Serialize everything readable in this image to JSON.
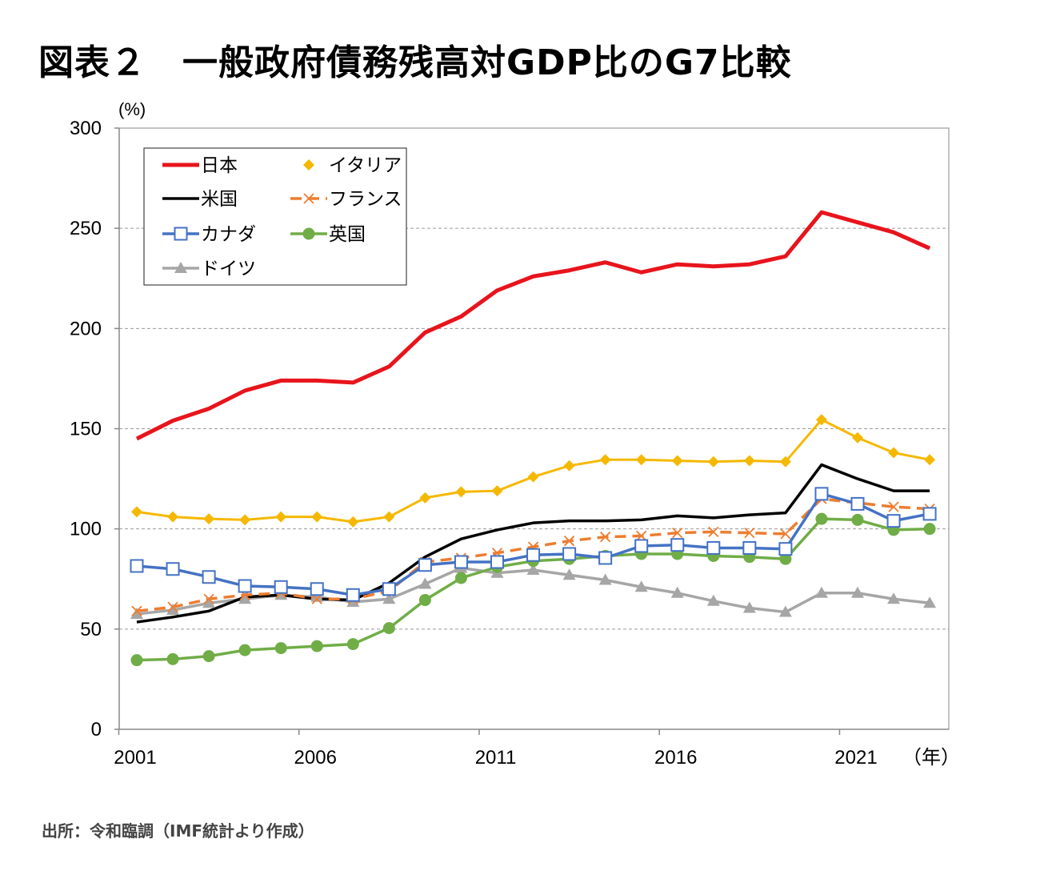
{
  "title": "図表２　一般政府債務残高対GDP比のG7比較",
  "source": "出所：令和臨調（IMF統計より作成）",
  "chart_data": {
    "type": "line",
    "ylabel": "(%)",
    "xlabel": "（年）",
    "ylim": [
      0,
      300
    ],
    "yticks": [
      0,
      50,
      100,
      150,
      200,
      250,
      300
    ],
    "xlim": [
      2001,
      2023
    ],
    "xticks": [
      2001,
      2006,
      2011,
      2016,
      2021
    ],
    "grid": true,
    "legend_position": "top-left",
    "x": [
      2001,
      2002,
      2003,
      2004,
      2005,
      2006,
      2007,
      2008,
      2009,
      2010,
      2011,
      2012,
      2013,
      2014,
      2015,
      2016,
      2017,
      2018,
      2019,
      2020,
      2021,
      2022,
      2023
    ],
    "series": [
      {
        "name": "日本",
        "color": "#e8141c",
        "marker": "none",
        "dash": "",
        "values": [
          145,
          154,
          160,
          169,
          174,
          174,
          173,
          181,
          198,
          206,
          219,
          226,
          229,
          233,
          228,
          232,
          231,
          232,
          236,
          258,
          253,
          248,
          240
        ]
      },
      {
        "name": "イタリア",
        "color": "#f5b800",
        "marker": "diamond",
        "dash": "",
        "values": [
          108.5,
          106,
          105,
          104.5,
          106,
          106,
          103.5,
          106,
          115.5,
          118.5,
          119,
          126,
          131.5,
          134.5,
          134.5,
          134,
          133.5,
          134,
          133.5,
          154.5,
          145.5,
          138,
          134.5
        ]
      },
      {
        "name": "米国",
        "color": "#000000",
        "marker": "none",
        "dash": "",
        "values": [
          53.5,
          56,
          59,
          66,
          67,
          65,
          64.5,
          73,
          86,
          95,
          99.5,
          103,
          104,
          104,
          104.5,
          106.5,
          105.5,
          107,
          108,
          132,
          125,
          119,
          119
        ]
      },
      {
        "name": "フランス",
        "color": "#ed7d31",
        "marker": "x",
        "dash": "14,8",
        "values": [
          59,
          61,
          65,
          67,
          68,
          65,
          65,
          69,
          83.5,
          85.5,
          88,
          91,
          94,
          96,
          96.5,
          98,
          98.5,
          98,
          97.5,
          115,
          113,
          111,
          110
        ]
      },
      {
        "name": "カナダ",
        "color": "#4472c4",
        "marker": "square",
        "dash": "",
        "values": [
          81.5,
          80,
          76,
          71.5,
          71,
          70,
          67,
          70,
          82,
          83.5,
          83.5,
          87,
          87.5,
          85.5,
          91.5,
          92,
          90.5,
          90.5,
          90,
          117.5,
          112.5,
          104,
          107.5
        ]
      },
      {
        "name": "英国",
        "color": "#70ad47",
        "marker": "circle",
        "dash": "",
        "values": [
          34.5,
          35,
          36.5,
          39.5,
          40.5,
          41.5,
          42.5,
          50.5,
          64.5,
          75.5,
          81,
          84,
          85,
          86.5,
          87.5,
          87.5,
          86.5,
          86,
          85,
          105,
          104.5,
          99.5,
          100
        ]
      },
      {
        "name": "ドイツ",
        "color": "#a6a6a6",
        "marker": "triangle",
        "dash": "",
        "values": [
          57.5,
          59.5,
          63,
          65,
          67,
          66,
          63.5,
          65,
          72.5,
          80.5,
          78,
          79.5,
          77,
          74.5,
          71,
          68,
          64,
          60.5,
          58.5,
          68,
          68,
          65,
          63
        ]
      }
    ]
  }
}
